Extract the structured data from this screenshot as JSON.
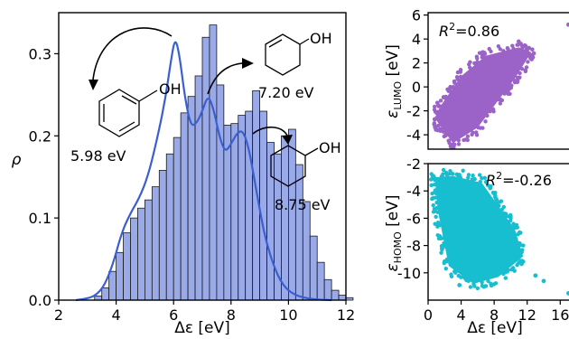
{
  "chart_data": [
    {
      "type": "bar",
      "xlabel": "Δε [eV]",
      "ylabel": "ρ",
      "xlim": [
        2,
        12
      ],
      "ylim": [
        0,
        0.35
      ],
      "xticks": [
        "2",
        "4",
        "6",
        "8",
        "10",
        "12"
      ],
      "yticks": [
        "0.0",
        "0.1",
        "0.2",
        "0.3"
      ],
      "grid": false,
      "bin_width": 0.25,
      "bin_start": 3.25,
      "densities": [
        0.005,
        0.015,
        0.035,
        0.058,
        0.082,
        0.1,
        0.112,
        0.122,
        0.138,
        0.158,
        0.178,
        0.198,
        0.228,
        0.248,
        0.273,
        0.32,
        0.335,
        0.262,
        0.213,
        0.215,
        0.225,
        0.23,
        0.255,
        0.23,
        0.192,
        0.178,
        0.2,
        0.208,
        0.165,
        0.12,
        0.078,
        0.046,
        0.025,
        0.012,
        0.006,
        0.003
      ],
      "kde": [
        [
          2.6,
          0.0
        ],
        [
          3.0,
          0.002
        ],
        [
          3.3,
          0.006
        ],
        [
          3.6,
          0.018
        ],
        [
          3.9,
          0.045
        ],
        [
          4.2,
          0.083
        ],
        [
          4.5,
          0.106
        ],
        [
          4.8,
          0.124
        ],
        [
          5.1,
          0.15
        ],
        [
          5.4,
          0.192
        ],
        [
          5.7,
          0.242
        ],
        [
          5.9,
          0.29
        ],
        [
          6.05,
          0.32
        ],
        [
          6.2,
          0.3
        ],
        [
          6.4,
          0.245
        ],
        [
          6.6,
          0.212
        ],
        [
          6.8,
          0.215
        ],
        [
          7.0,
          0.23
        ],
        [
          7.2,
          0.25
        ],
        [
          7.4,
          0.232
        ],
        [
          7.6,
          0.198
        ],
        [
          7.8,
          0.18
        ],
        [
          8.0,
          0.19
        ],
        [
          8.2,
          0.203
        ],
        [
          8.4,
          0.207
        ],
        [
          8.6,
          0.188
        ],
        [
          8.8,
          0.15
        ],
        [
          9.0,
          0.11
        ],
        [
          9.2,
          0.074
        ],
        [
          9.5,
          0.04
        ],
        [
          9.8,
          0.018
        ],
        [
          10.2,
          0.006
        ],
        [
          10.8,
          0.001
        ],
        [
          11.5,
          0.0
        ]
      ],
      "annotations": [
        {
          "label": "5.98 eV",
          "molecule": "phenol"
        },
        {
          "label": "7.20 eV",
          "molecule": "cyclohex-2-en-1-ol"
        },
        {
          "label": "8.75 eV",
          "molecule": "cyclohexanol"
        }
      ],
      "molecule_atom_label": "OH",
      "colors": {
        "bars": "#9aaae8",
        "bar_edge": "#1a1a1a",
        "kde": "#3a5fd0"
      }
    },
    {
      "type": "scatter",
      "ylabel_main": "ε",
      "ylabel_sub": "LUMO",
      "ylabel_unit": " [eV]",
      "xlim": [
        0,
        17.5
      ],
      "ylim": [
        -5.2,
        6.2
      ],
      "xticks": [],
      "yticks": [
        "6",
        "4",
        "2",
        "0",
        "-2",
        "-4"
      ],
      "r2_label": "R",
      "r2_sup": "2",
      "r2_value": "=0.86",
      "points_outline": [
        [
          0.8,
          -2.6
        ],
        [
          3.0,
          -4.7
        ],
        [
          6.0,
          -3.4
        ],
        [
          10.5,
          0.7
        ],
        [
          12.5,
          2.9
        ],
        [
          11.0,
          3.3
        ],
        [
          7.0,
          2.6
        ],
        [
          4.0,
          0.9
        ],
        [
          1.5,
          -1.6
        ]
      ],
      "outliers": [
        [
          17.0,
          5.2
        ],
        [
          0.8,
          -2.7
        ],
        [
          1.2,
          -2.1
        ],
        [
          2.5,
          -4.5
        ],
        [
          12.8,
          2.8
        ]
      ],
      "color": "#9b62c8"
    },
    {
      "type": "scatter",
      "xlabel": "Δε [eV]",
      "ylabel_main": "ε",
      "ylabel_sub": "HOMO",
      "ylabel_unit": " [eV]",
      "xlim": [
        0,
        17.5
      ],
      "ylim": [
        -12,
        -2
      ],
      "xticks": [
        "0",
        "4",
        "8",
        "12",
        "16"
      ],
      "yticks": [
        "-2",
        "-4",
        "-6",
        "-8",
        "-10"
      ],
      "r2_label": "R",
      "r2_sup": "2",
      "r2_value": "=-0.26",
      "points_outline": [
        [
          0.8,
          -3.0
        ],
        [
          3.0,
          -2.9
        ],
        [
          6.5,
          -3.4
        ],
        [
          10.5,
          -6.8
        ],
        [
          11.5,
          -8.8
        ],
        [
          8.5,
          -10.3
        ],
        [
          5.5,
          -10.8
        ],
        [
          2.5,
          -9.5
        ],
        [
          1.2,
          -5.5
        ]
      ],
      "outliers": [
        [
          17.0,
          -11.5
        ],
        [
          13.0,
          -10.2
        ],
        [
          14.0,
          -10.6
        ],
        [
          0.7,
          -3.0
        ],
        [
          3.8,
          -10.9
        ]
      ],
      "color": "#17becf"
    }
  ]
}
